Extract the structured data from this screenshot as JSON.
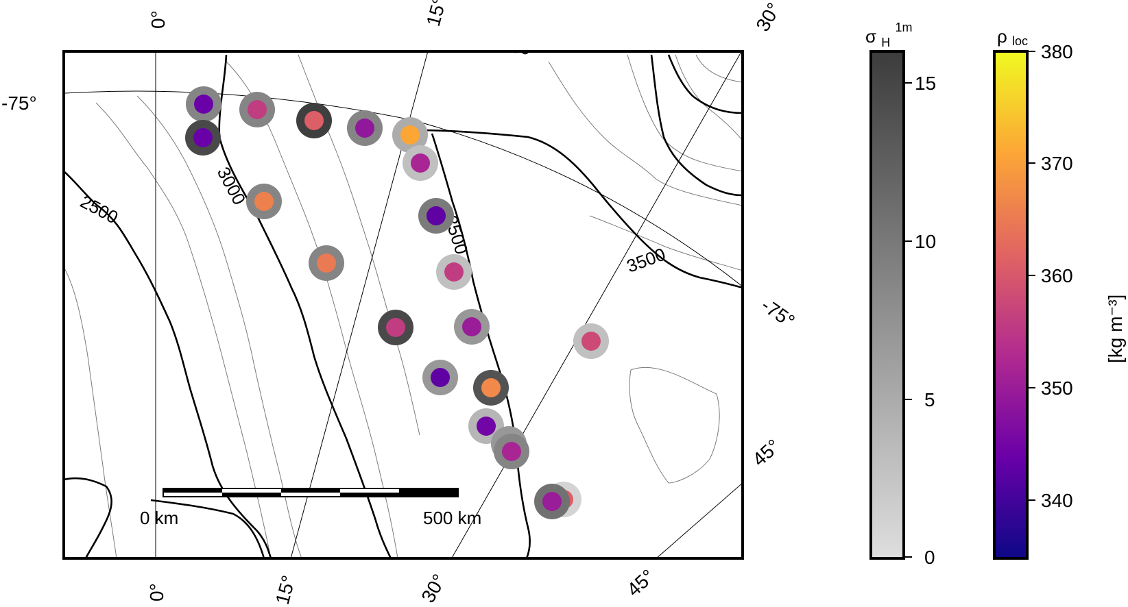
{
  "map": {
    "graticule": {
      "meridian_labels_top": [
        "0°",
        "15°",
        "30°"
      ],
      "meridian_labels_bottom": [
        "0°",
        "15°",
        "30°",
        "45°"
      ],
      "meridian_labels_right": [
        "45°"
      ],
      "parallel_labels": [
        "-75°",
        "-75°"
      ]
    },
    "contours": {
      "labels": [
        "2500",
        "3000",
        "3000",
        "3500",
        "3500"
      ],
      "color": "#000000"
    },
    "scale_bar": {
      "start_label": "0 km",
      "end_label": "500 km",
      "length_km": 500
    },
    "sites": {
      "density_kg_m3": [
        344,
        356,
        361,
        349,
        371,
        344,
        352,
        366,
        343,
        365,
        356,
        356,
        350,
        358,
        343,
        367,
        345,
        359,
        352,
        361,
        350
      ],
      "sigma_h_1m": [
        9,
        9,
        16,
        9,
        5,
        15,
        3,
        9,
        10,
        9,
        3,
        15,
        7,
        3,
        7,
        14,
        4,
        7,
        9,
        1,
        11
      ]
    }
  },
  "colorbars": {
    "sigma": {
      "title_main": "σ",
      "title_sub": "H",
      "title_sup": "1m",
      "ticks": [
        "0",
        "5",
        "10",
        "15"
      ],
      "range": [
        0,
        16.3
      ],
      "colors": [
        "#dedede",
        "#3c3c3c"
      ]
    },
    "density": {
      "title_main": "ρ",
      "title_sub": "loc",
      "ticks": [
        "340",
        "350",
        "360",
        "370",
        "380"
      ],
      "range": [
        335,
        380
      ],
      "unit": "[kg m⁻³]",
      "colors": [
        "#0d0887",
        "#6a00a8",
        "#b12a90",
        "#e16462",
        "#fca636",
        "#f0f921"
      ]
    }
  }
}
